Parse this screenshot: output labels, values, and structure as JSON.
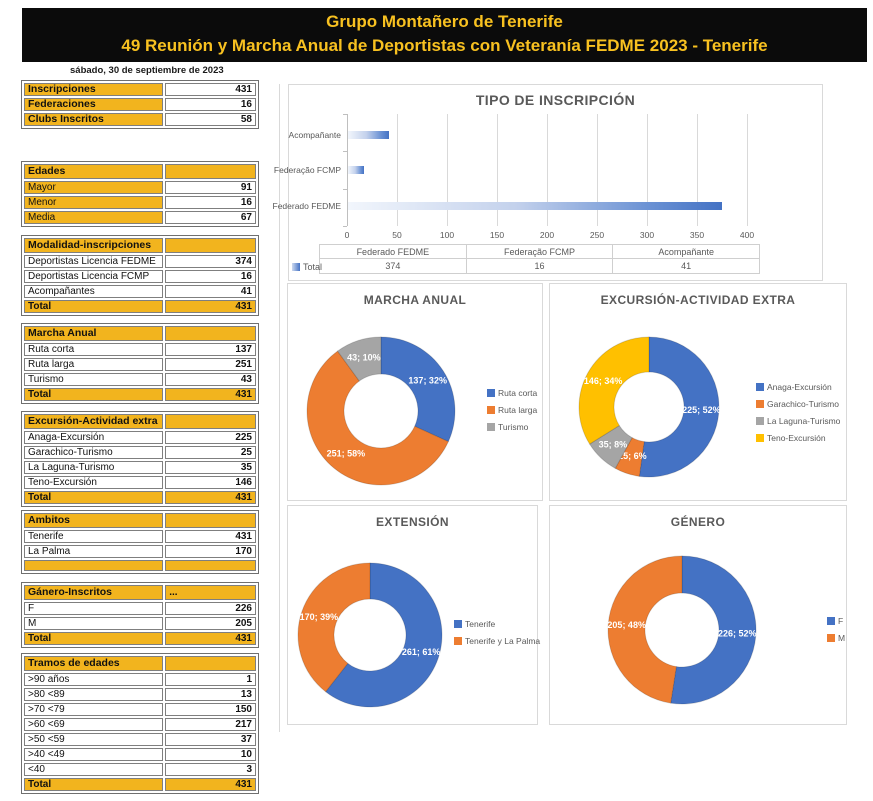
{
  "header": {
    "line1": "Grupo Montañero de Tenerife",
    "line2": "49 Reunión y Marcha Anual de Deportistas con Veteranía FEDME 2023 - Tenerife"
  },
  "date_line": "sábado, 30 de septiembre de 2023",
  "colors": {
    "accent_yellow": "#F2B41E",
    "chart_blue": "#4472C4",
    "chart_orange": "#ED7D31",
    "chart_gray": "#A5A5A5",
    "chart_gold": "#FFC000",
    "header_bg": "#0B0B0B",
    "header_text": "#F8C120"
  },
  "summary_tables": [
    {
      "title": null,
      "title_value": "",
      "label_bg": "yellow",
      "label_bold": true,
      "rows": [
        {
          "label": "Inscripciones",
          "value": "431"
        },
        {
          "label": "Federaciones",
          "value": "16"
        },
        {
          "label": "Clubs Inscritos",
          "value": "58"
        }
      ],
      "total": null,
      "empty_row": false
    },
    {
      "title": "Edades",
      "title_value": "",
      "label_bg": "yellow",
      "label_bold": false,
      "rows": [
        {
          "label": "Mayor",
          "value": "91"
        },
        {
          "label": "Menor",
          "value": "16"
        },
        {
          "label": "Media",
          "value": "67"
        }
      ],
      "total": null,
      "empty_row": false
    },
    {
      "title": "Modalidad-inscripciones",
      "title_value": "",
      "label_bg": "white",
      "label_bold": false,
      "rows": [
        {
          "label": "Deportistas Licencia FEDME",
          "value": "374"
        },
        {
          "label": "Deportistas Licencia FCMP",
          "value": "16"
        },
        {
          "label": "Acompañantes",
          "value": "41"
        }
      ],
      "total": {
        "label": "Total",
        "value": "431"
      },
      "empty_row": false
    },
    {
      "title": "Marcha Anual",
      "title_value": "",
      "label_bg": "white",
      "label_bold": false,
      "rows": [
        {
          "label": "Ruta corta",
          "value": "137"
        },
        {
          "label": "Ruta larga",
          "value": "251"
        },
        {
          "label": "Turismo",
          "value": "43"
        }
      ],
      "total": {
        "label": "Total",
        "value": "431"
      },
      "empty_row": false
    },
    {
      "title": "Excursión-Actividad extra",
      "title_value": "",
      "label_bg": "white",
      "label_bold": false,
      "rows": [
        {
          "label": "Anaga-Excursión",
          "value": "225"
        },
        {
          "label": "Garachico-Turismo",
          "value": "25"
        },
        {
          "label": "La Laguna-Turismo",
          "value": "35"
        },
        {
          "label": "Teno-Excursión",
          "value": "146"
        }
      ],
      "total": {
        "label": "Total",
        "value": "431"
      },
      "empty_row": false
    },
    {
      "title": "Ambitos",
      "title_value": "",
      "label_bg": "white",
      "label_bold": false,
      "rows": [
        {
          "label": "Tenerife",
          "value": "431"
        },
        {
          "label": "La Palma",
          "value": "170"
        }
      ],
      "total": null,
      "empty_row": true
    },
    {
      "title": "Gánero-Inscritos",
      "title_value": "...",
      "label_bg": "white",
      "label_bold": false,
      "rows": [
        {
          "label": "F",
          "value": "226"
        },
        {
          "label": "M",
          "value": "205"
        }
      ],
      "total": {
        "label": "Total",
        "value": "431"
      },
      "empty_row": false
    },
    {
      "title": "Tramos de edades",
      "title_value": "",
      "label_bg": "white",
      "label_bold": false,
      "rows": [
        {
          "label": ">90 años",
          "value": "1"
        },
        {
          "label": ">80 <89",
          "value": "13"
        },
        {
          "label": ">70 <79",
          "value": "150"
        },
        {
          "label": ">60 <69",
          "value": "217"
        },
        {
          "label": ">50 <59",
          "value": "37"
        },
        {
          "label": ">40 <49",
          "value": "10"
        },
        {
          "label": "<40",
          "value": "3"
        }
      ],
      "total": {
        "label": "Total",
        "value": "431"
      },
      "empty_row": false
    }
  ],
  "chart_data": [
    {
      "type": "bar",
      "orientation": "horizontal",
      "title": "TIPO DE INSCRIPCIÓN",
      "categories": [
        "Federado FEDME",
        "Federação FCMP",
        "Acompañante"
      ],
      "series": [
        {
          "name": "Total",
          "values": [
            374,
            16,
            41
          ]
        }
      ],
      "xlim": [
        0,
        400
      ],
      "xticks": [
        0,
        50,
        100,
        150,
        200,
        250,
        300,
        350,
        400
      ],
      "grid": true,
      "bar_color": "#4472C4",
      "bar_gradient": true,
      "legend_position": "bottom-left",
      "data_table": {
        "row_label": "Total",
        "headers": [
          "Federado FEDME",
          "Federação FCMP",
          "Acompañante"
        ],
        "values": [
          "374",
          "16",
          "41"
        ]
      }
    },
    {
      "type": "pie",
      "subtype": "donut",
      "title": "MARCHA ANUAL",
      "labels": [
        "Ruta corta",
        "Ruta larga",
        "Turismo"
      ],
      "values": [
        137,
        251,
        43
      ],
      "slice_labels": [
        "137; 32%",
        "251; 58%",
        "43; 10%"
      ],
      "colors": [
        "#4472C4",
        "#ED7D31",
        "#A5A5A5"
      ],
      "legend_position": "right"
    },
    {
      "type": "pie",
      "subtype": "donut",
      "title": "EXCURSIÓN-ACTIVIDAD EXTRA",
      "labels": [
        "Anaga-Excursión",
        "Garachico-Turismo",
        "La Laguna-Turismo",
        "Teno-Excursión"
      ],
      "values": [
        225,
        25,
        35,
        146
      ],
      "slice_labels": [
        "225; 52%",
        "25; 6%",
        "35; 8%",
        "146; 34%"
      ],
      "colors": [
        "#4472C4",
        "#ED7D31",
        "#A5A5A5",
        "#FFC000"
      ],
      "legend_position": "right"
    },
    {
      "type": "pie",
      "subtype": "donut",
      "title": "EXTENSIÓN",
      "labels": [
        "Tenerife",
        "Tenerife y La Palma"
      ],
      "values": [
        261,
        170
      ],
      "slice_labels": [
        "261; 61%",
        "170; 39%"
      ],
      "colors": [
        "#4472C4",
        "#ED7D31"
      ],
      "legend_position": "right"
    },
    {
      "type": "pie",
      "subtype": "donut",
      "title": "GÉNERO",
      "labels": [
        "F",
        "M"
      ],
      "values": [
        226,
        205
      ],
      "slice_labels": [
        "226; 52%",
        "205; 48%"
      ],
      "colors": [
        "#4472C4",
        "#ED7D31"
      ],
      "legend_position": "right"
    }
  ]
}
